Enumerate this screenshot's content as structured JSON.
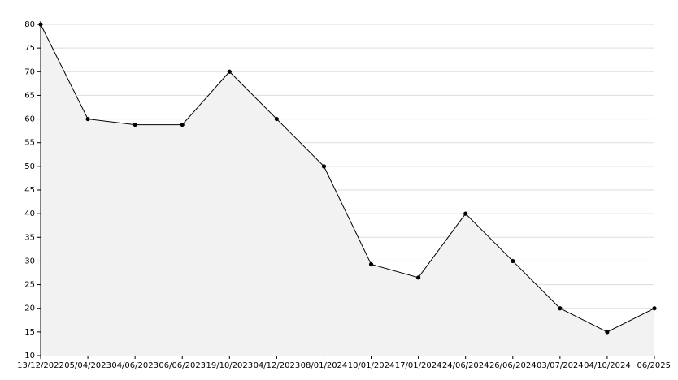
{
  "chart_data": {
    "type": "area",
    "categories": [
      "13/12/2022",
      "05/04/2023",
      "04/06/2023",
      "06/06/2023",
      "19/10/2023",
      "04/12/2023",
      "08/01/2024",
      "10/01/2024",
      "17/01/2024",
      "24/06/2024",
      "26/06/2024",
      "03/07/2024",
      "04/10/2024",
      "06/2025"
    ],
    "values": [
      80,
      60,
      58.8,
      58.8,
      70,
      60,
      50,
      29.3,
      26.5,
      40,
      30,
      20,
      15,
      20
    ],
    "color": "#000000",
    "fill": "#f2f2f2",
    "ylim": [
      10,
      80
    ],
    "yticks": [
      10,
      15,
      20,
      25,
      30,
      35,
      40,
      45,
      50,
      55,
      60,
      65,
      70,
      75,
      80
    ],
    "grid": true
  }
}
